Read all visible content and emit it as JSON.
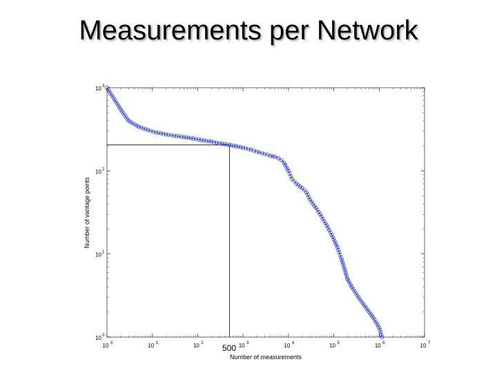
{
  "slide": {
    "title": "Measurements per Network"
  },
  "chart_data": {
    "type": "line",
    "title": "",
    "xlabel": "Number of measurements",
    "ylabel": "Number of vantage points",
    "xscale": "log",
    "yscale": "log",
    "xlim": [
      1,
      10000000
    ],
    "ylim": [
      1,
      1000
    ],
    "grid": false,
    "legend": "none",
    "x_ticks": [
      {
        "base": "10",
        "exp": "0",
        "value": 1
      },
      {
        "base": "10",
        "exp": "1",
        "value": 10
      },
      {
        "base": "10",
        "exp": "2",
        "value": 100
      },
      {
        "base": "10",
        "exp": "3",
        "value": 1000
      },
      {
        "base": "10",
        "exp": "4",
        "value": 10000
      },
      {
        "base": "10",
        "exp": "5",
        "value": 100000
      },
      {
        "base": "10",
        "exp": "6",
        "value": 1000000
      },
      {
        "base": "10",
        "exp": "7",
        "value": 10000000
      }
    ],
    "y_ticks": [
      {
        "base": "10",
        "exp": "0",
        "value": 1
      },
      {
        "base": "10",
        "exp": "1",
        "value": 10
      },
      {
        "base": "10",
        "exp": "2",
        "value": 100
      },
      {
        "base": "10",
        "exp": "3",
        "value": 1000
      }
    ],
    "series": [
      {
        "color": "#2233cc",
        "marker": "circle",
        "x": [
          1,
          2,
          3,
          5,
          8,
          12,
          20,
          30,
          50,
          80,
          120,
          200,
          300,
          500,
          700,
          1000,
          1500,
          2000,
          3000,
          4000,
          5000,
          6000,
          7000,
          8000,
          10000,
          12000,
          15000,
          20000,
          25000,
          30000,
          40000,
          50000,
          70000,
          90000,
          120000,
          150000,
          200000,
          250000,
          350000,
          500000,
          700000,
          1000000,
          1150000
        ],
        "y": [
          1000,
          550,
          400,
          340,
          310,
          290,
          275,
          265,
          255,
          245,
          235,
          225,
          215,
          205,
          198,
          190,
          180,
          170,
          160,
          152,
          148,
          142,
          135,
          125,
          100,
          80,
          70,
          62,
          55,
          45,
          36,
          30,
          22,
          17,
          12,
          8.5,
          5,
          4,
          3,
          2.3,
          1.8,
          1.3,
          1
        ]
      }
    ],
    "annotations": {
      "crosshair": {
        "x": 500,
        "y": 205
      },
      "label": "500"
    }
  }
}
